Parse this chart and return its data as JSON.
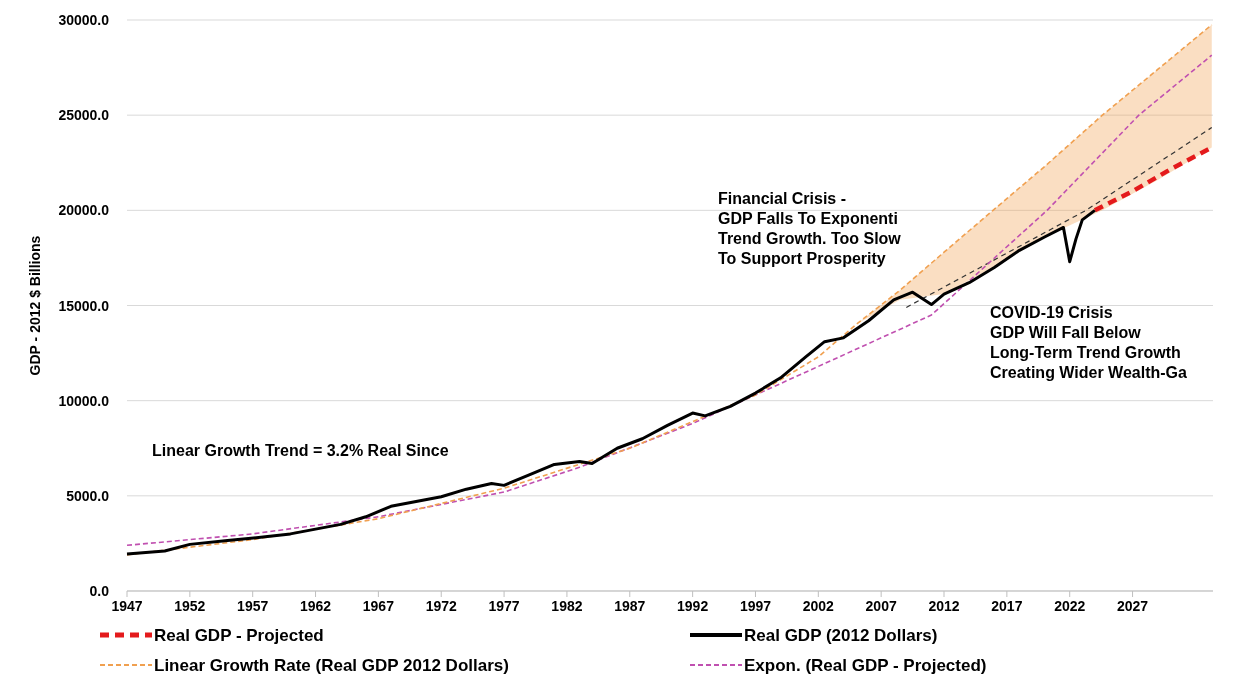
{
  "chart_data": {
    "type": "line",
    "ylabel": "GDP - 2012 $ Billions",
    "xlim": [
      1947,
      2033.4
    ],
    "xticks": [
      1947,
      1952,
      1957,
      1962,
      1967,
      1972,
      1977,
      1982,
      1987,
      1992,
      1997,
      2002,
      2007,
      2012,
      2017,
      2022,
      2027
    ],
    "ylim": [
      0,
      30000
    ],
    "yticks": [
      {
        "value": 0,
        "label": "0.0"
      },
      {
        "value": 5000,
        "label": "5000.0"
      },
      {
        "value": 10000,
        "label": "10000.0"
      },
      {
        "value": 15000,
        "label": "15000.0"
      },
      {
        "value": 20000,
        "label": "20000.0"
      },
      {
        "value": 25000,
        "label": "25000.0"
      },
      {
        "value": 30000,
        "label": "30000.0"
      }
    ],
    "grid": "y",
    "legend": "bottom",
    "marker": "none",
    "series": [
      {
        "name": "Real GDP - Projected",
        "color": "#e41a1c",
        "line_style": "dashed",
        "x": [
          2024,
          2027,
          2030,
          2033.3
        ],
        "values": [
          20000,
          21000,
          22150,
          23300
        ]
      },
      {
        "name": "Real GDP (2012 Dollars)",
        "color": "#000000",
        "line_style": "solid",
        "x": [
          1947,
          1950,
          1952,
          1955,
          1958,
          1960,
          1962,
          1964,
          1966,
          1968,
          1970,
          1972,
          1974,
          1976,
          1977,
          1979,
          1981,
          1983,
          1984,
          1986,
          1988,
          1990,
          1992,
          1993,
          1995,
          1997,
          1999,
          2001,
          2002.5,
          2004,
          2006,
          2008,
          2009.5,
          2011,
          2012,
          2014,
          2016,
          2018,
          2020,
          2021.5,
          2022,
          2022.5,
          2023,
          2024
        ],
        "values": [
          1950,
          2100,
          2450,
          2650,
          2850,
          3000,
          3250,
          3500,
          3900,
          4450,
          4700,
          4950,
          5350,
          5650,
          5550,
          6100,
          6650,
          6800,
          6700,
          7500,
          8000,
          8700,
          9350,
          9200,
          9700,
          10400,
          11200,
          12300,
          13100,
          13300,
          14200,
          15300,
          15700,
          15050,
          15600,
          16200,
          17000,
          17900,
          18600,
          19100,
          17300,
          18500,
          19500,
          20000
        ]
      },
      {
        "name": "Linear Growth Rate (Real GDP 2012 Dollars)",
        "color": "#f0a050",
        "line_style": "dashed",
        "x": [
          1947,
          1957,
          1967,
          1977,
          1987,
          1997,
          2002,
          2005,
          2008.5,
          2012,
          2015.9,
          2020,
          2024.6,
          2029,
          2033.3
        ],
        "values": [
          1900,
          2700,
          3800,
          5400,
          7500,
          10300,
          12300,
          14000,
          15800,
          17800,
          20000,
          22300,
          25000,
          27400,
          29750
        ],
        "upper": [
          1900,
          2700,
          3800,
          5400,
          7500,
          10300,
          12300,
          14000,
          15800,
          17800,
          20000,
          22300,
          25000,
          27400,
          29750
        ],
        "lower": [
          1900,
          2700,
          3800,
          5400,
          7500,
          10300,
          12300,
          14000,
          15300,
          15600,
          17000,
          18600,
          20000,
          21600,
          23300
        ]
      },
      {
        "name": "Expon. (Real GDP - Projected)",
        "color": "#c050b0",
        "line_style": "dashed",
        "x": [
          1947,
          1957,
          1967,
          1977,
          1983,
          1992,
          2002,
          2011,
          2020.2,
          2027.5,
          2033.3
        ],
        "values": [
          2400,
          3000,
          3900,
          5200,
          6500,
          8800,
          11800,
          14500,
          20000,
          25000,
          28150
        ]
      },
      {
        "color": "#333333",
        "line_style": "dashed",
        "x": [
          2009,
          2023.3,
          2033.3
        ],
        "values": [
          14900,
          20000,
          24350
        ]
      }
    ],
    "annotations": [
      "Financial Crisis -\nGDP Falls To Exponenti\nTrend Growth. Too Slow\nTo Support Prosperity",
      "COVID-19 Crisis\nGDP Will Fall Below\nLong-Term Trend Growth\nCreating Wider Wealth-Ga",
      "Linear Growth Trend = 3.2% Real Since"
    ]
  }
}
